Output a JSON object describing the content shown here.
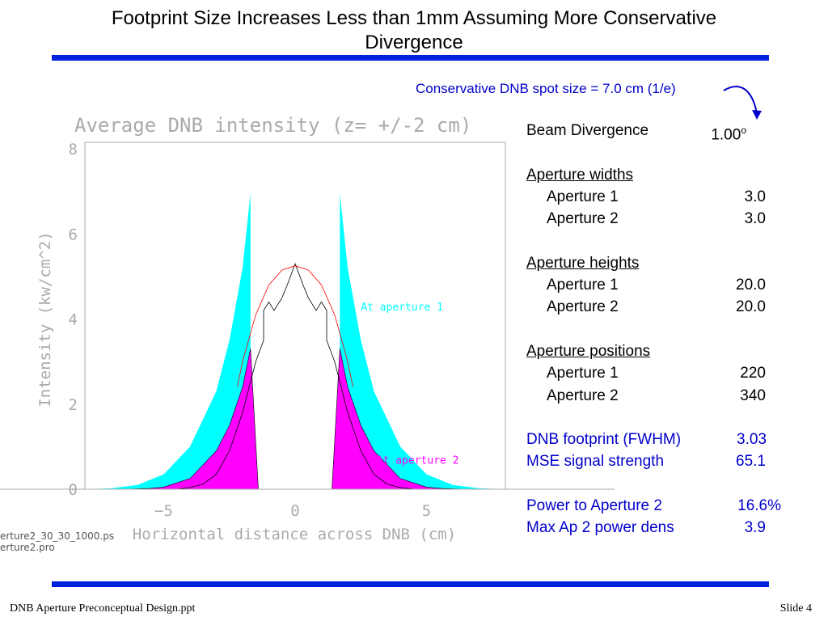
{
  "slide": {
    "title_line1": "Footprint Size Increases Less than 1mm Assuming More Conservative",
    "title_line2": "Divergence",
    "accent_color": "#0022dd",
    "callout": "Conservative DNB spot size = 7.0 cm (1/e)",
    "footer_left": "DNB Aperture Preconceptual Design.ppt",
    "footer_right": "Slide 4",
    "file_line1": "erture2_30_30_1000.ps",
    "file_line2": "erture2.pro"
  },
  "params": {
    "beam_divergence_label": "Beam Divergence",
    "beam_divergence_value": "1.00",
    "beam_divergence_unit": "o",
    "aperture_widths_header": "Aperture widths",
    "aw1_label": "Aperture 1",
    "aw1_value": "3.0",
    "aw2_label": "Aperture 2",
    "aw2_value": "3.0",
    "aperture_heights_header": "Aperture heights",
    "ah1_label": "Aperture 1",
    "ah1_value": "20.0",
    "ah2_label": "Aperture 2",
    "ah2_value": "20.0",
    "aperture_positions_header": "Aperture positions",
    "ap1_label": "Aperture 1",
    "ap1_value": "220",
    "ap2_label": "Aperture 2",
    "ap2_value": "340",
    "footprint_label": "DNB footprint (FWHM)",
    "footprint_value": "3.03",
    "mse_label": "MSE signal strength",
    "mse_value": "65.1",
    "power_label": "Power to Aperture 2",
    "power_value": "16.6%",
    "maxpd_label": "Max Ap 2 power dens",
    "maxpd_value": "3.9"
  },
  "chart_data": {
    "type": "area",
    "title": "Average DNB intensity (z= +/-2 cm)",
    "xlabel": "Horizontal distance across DNB (cm)",
    "ylabel": "Intensity (kw/cm^2)",
    "xlim": [
      -8,
      8
    ],
    "ylim": [
      0,
      8
    ],
    "x_ticks": [
      -5,
      0,
      5
    ],
    "x_tick_labels": [
      "−5",
      "0",
      "5"
    ],
    "y_ticks": [
      0,
      2,
      4,
      6,
      8
    ],
    "y_tick_labels": [
      "0",
      "2",
      "4",
      "6",
      "8"
    ],
    "grid": false,
    "annotations": [
      {
        "text": "At aperture 1",
        "x": 2.5,
        "y": 4.2,
        "color": "#00ffff"
      },
      {
        "text": "At aperture 2",
        "x": 3.1,
        "y": 0.6,
        "color": "#ff00ff"
      }
    ],
    "series": [
      {
        "color": "#00ffff",
        "x": [
          -8,
          -7,
          -6,
          -5,
          -4,
          -3,
          -2.5,
          -2,
          -1.7,
          -1.7,
          1.7,
          1.7,
          2,
          2.5,
          3,
          4,
          5,
          6,
          7,
          8
        ],
        "y": [
          0,
          0.02,
          0.1,
          0.35,
          1.0,
          2.3,
          3.5,
          5.2,
          6.95,
          0,
          0,
          6.95,
          5.2,
          3.5,
          2.3,
          1.0,
          0.35,
          0.1,
          0.02,
          0
        ]
      },
      {
        "color": "#ff00ff",
        "x": [
          -6.5,
          -5.5,
          -5,
          -4,
          -3,
          -2.5,
          -2,
          -1.7,
          -1.4,
          -1.4,
          1.4,
          1.4,
          1.7,
          2,
          2.5,
          3,
          4,
          5,
          5.5,
          6.5
        ],
        "y": [
          0,
          0.02,
          0.05,
          0.25,
          0.9,
          1.5,
          2.4,
          3.3,
          0,
          0,
          0,
          0,
          3.3,
          2.4,
          1.5,
          0.9,
          0.25,
          0.05,
          0.02,
          0
        ]
      },
      {
        "color": "#000000",
        "x": [
          -4.5,
          -4,
          -3.5,
          -3,
          -2.5,
          -2,
          -1.5,
          -1.2,
          -1.2,
          -1,
          -0.8,
          -0.5,
          -0.3,
          0,
          0.3,
          0.5,
          0.8,
          1,
          1.2,
          1.2,
          1.5,
          2,
          2.5,
          3,
          3.5,
          4,
          4.5
        ],
        "y": [
          0,
          0.04,
          0.12,
          0.35,
          0.9,
          1.8,
          3.0,
          3.5,
          4.2,
          4.4,
          4.2,
          4.5,
          4.8,
          5.3,
          4.8,
          4.5,
          4.2,
          4.4,
          4.2,
          3.5,
          3.0,
          1.8,
          0.9,
          0.35,
          0.12,
          0.04,
          0
        ]
      },
      {
        "color": "#ff0000",
        "x": [
          -2.2,
          -2,
          -1.5,
          -1,
          -0.5,
          0,
          0.5,
          1,
          1.5,
          2,
          2.2
        ],
        "y": [
          2.4,
          3.0,
          4.1,
          4.8,
          5.15,
          5.25,
          5.15,
          4.8,
          4.1,
          3.0,
          2.4
        ]
      }
    ]
  }
}
